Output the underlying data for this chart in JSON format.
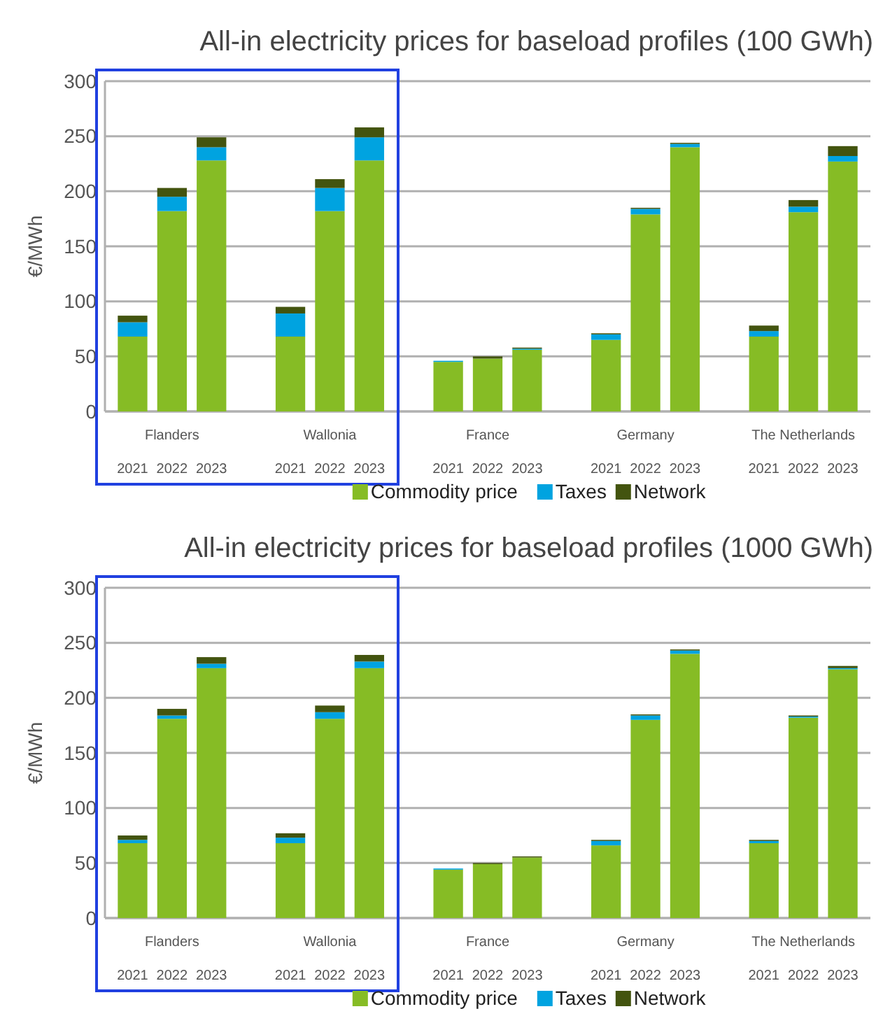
{
  "chart_data": [
    {
      "type": "bar",
      "title": "All-in electricity prices for baseload profiles (100 GWh)",
      "ylabel": "€/MWh",
      "stacked": true,
      "grid": "y",
      "legend": "bottom",
      "ylim": [
        0,
        300
      ],
      "yticks": [
        0,
        50,
        100,
        150,
        200,
        250,
        300
      ],
      "categories": [
        "2021",
        "2022",
        "2023",
        "2021",
        "2022",
        "2023",
        "2021",
        "2022",
        "2023",
        "2021",
        "2022",
        "2023",
        "2021",
        "2022",
        "2023"
      ],
      "annotations": [
        "Flanders",
        "Wallonia",
        "France",
        "Germany",
        "The Netherlands"
      ],
      "series": [
        {
          "name": "Commodity price",
          "color": "#86bc25",
          "values": [
            68,
            182,
            228,
            68,
            182,
            228,
            45,
            48,
            56,
            65,
            179,
            240,
            68,
            181,
            227
          ]
        },
        {
          "name": "Taxes",
          "color": "#00a3e0",
          "values": [
            13,
            13,
            12,
            21,
            21,
            21,
            1,
            0,
            1,
            5,
            5,
            3,
            5,
            5,
            5
          ]
        },
        {
          "name": "Network",
          "color": "#43540f",
          "values": [
            6,
            8,
            9,
            6,
            8,
            9,
            0,
            2,
            1,
            1,
            1,
            1,
            5,
            6,
            9
          ]
        }
      ]
    },
    {
      "type": "bar",
      "title": "All-in electricity prices for baseload profiles (1000 GWh)",
      "ylabel": "€/MWh",
      "stacked": true,
      "grid": "y",
      "legend": "bottom",
      "ylim": [
        0,
        300
      ],
      "yticks": [
        0,
        50,
        100,
        150,
        200,
        250,
        300
      ],
      "categories": [
        "2021",
        "2022",
        "2023",
        "2021",
        "2022",
        "2023",
        "2021",
        "2022",
        "2023",
        "2021",
        "2022",
        "2023",
        "2021",
        "2022",
        "2023"
      ],
      "annotations": [
        "Flanders",
        "Wallonia",
        "France",
        "Germany",
        "The Netherlands"
      ],
      "series": [
        {
          "name": "Commodity price",
          "color": "#86bc25",
          "values": [
            68,
            181,
            227,
            68,
            181,
            227,
            44,
            49,
            55,
            66,
            180,
            240,
            68,
            182,
            226
          ]
        },
        {
          "name": "Taxes",
          "color": "#00a3e0",
          "values": [
            3,
            3,
            4,
            5,
            6,
            6,
            1,
            0,
            0,
            4,
            4,
            3,
            2,
            1,
            1
          ]
        },
        {
          "name": "Network",
          "color": "#43540f",
          "values": [
            4,
            6,
            6,
            4,
            6,
            6,
            0,
            1,
            1,
            1,
            1,
            1,
            1,
            1,
            2
          ]
        }
      ]
    }
  ]
}
